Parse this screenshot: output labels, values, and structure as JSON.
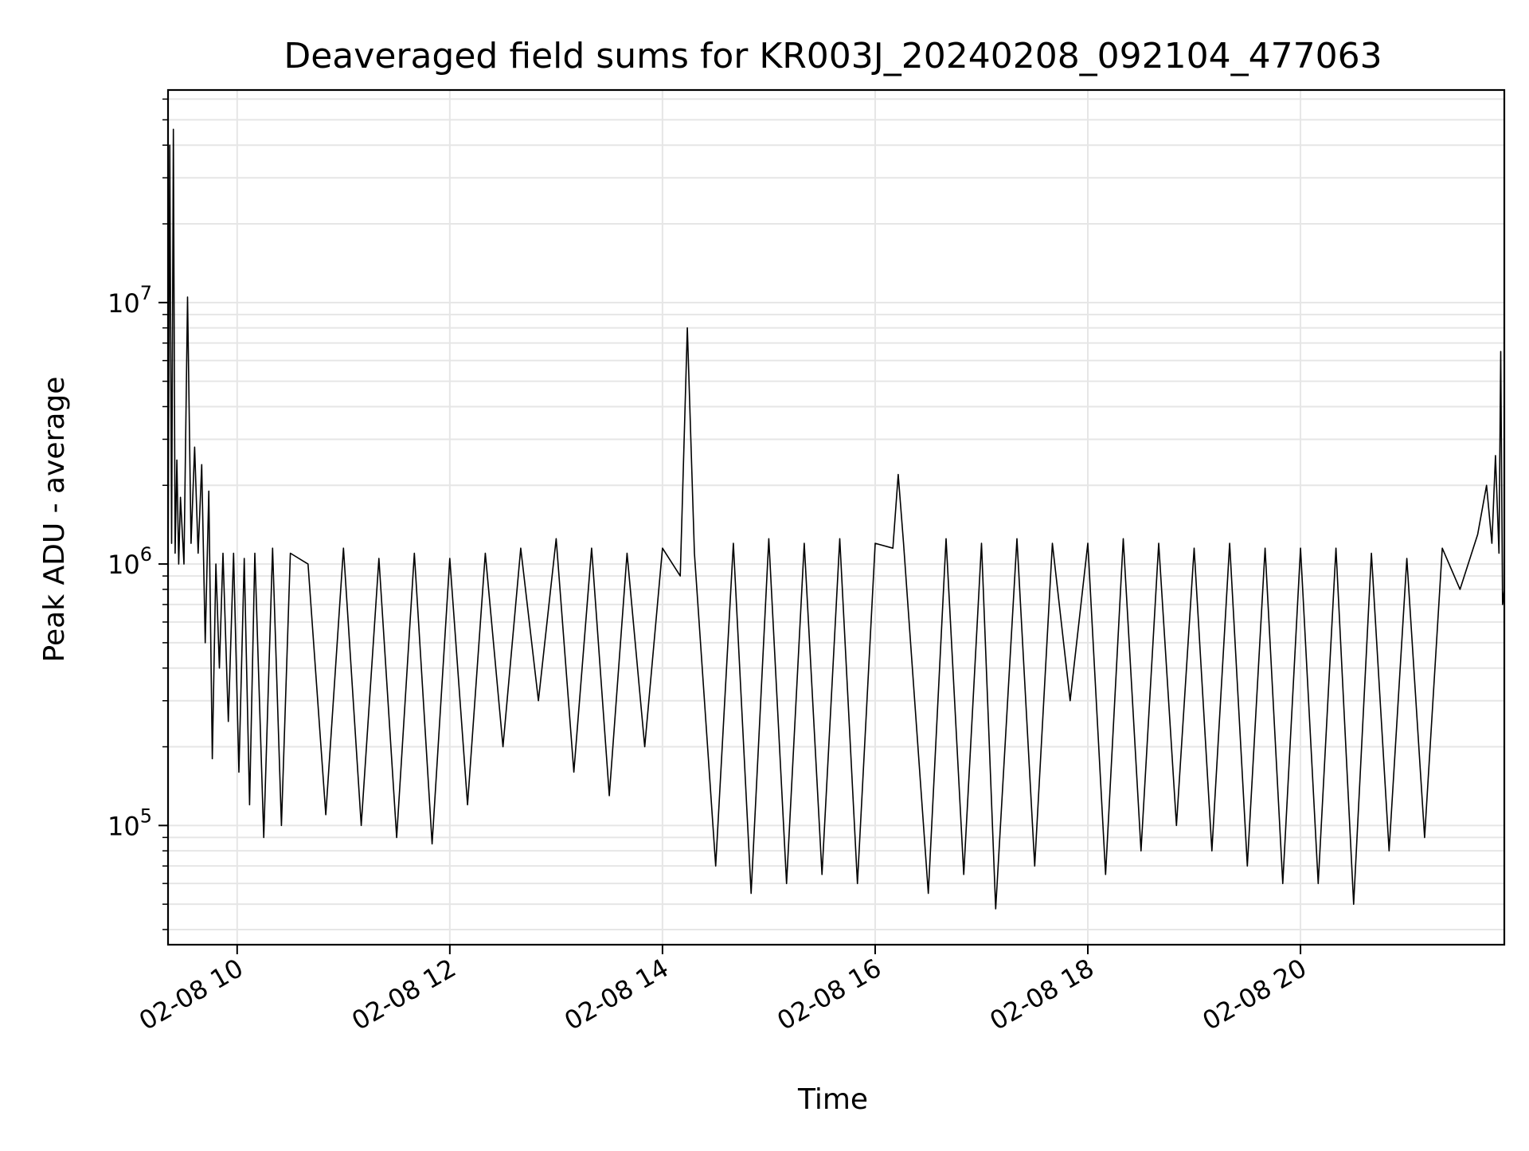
{
  "chart_data": {
    "type": "line",
    "title": "Deaveraged field sums for KR003J_20240208_092104_477063",
    "xlabel": "Time",
    "ylabel": "Peak ADU - average",
    "yscale": "log",
    "ylim": [
      35000,
      65000000
    ],
    "xlim": [
      "2024-02-08T09:21",
      "2024-02-08T21:55"
    ],
    "grid": true,
    "line_color": "#000000",
    "grid_color": "#e6e6e6",
    "x_ticks": [
      {
        "value": "2024-02-08T10:00",
        "label": "02-08 10"
      },
      {
        "value": "2024-02-08T12:00",
        "label": "02-08 12"
      },
      {
        "value": "2024-02-08T14:00",
        "label": "02-08 14"
      },
      {
        "value": "2024-02-08T16:00",
        "label": "02-08 16"
      },
      {
        "value": "2024-02-08T18:00",
        "label": "02-08 18"
      },
      {
        "value": "2024-02-08T20:00",
        "label": "02-08 20"
      }
    ],
    "y_ticks": [
      {
        "value": 100000,
        "base": "10",
        "exp": "5"
      },
      {
        "value": 1000000,
        "base": "10",
        "exp": "6"
      },
      {
        "value": 10000000,
        "base": "10",
        "exp": "7"
      }
    ],
    "series": [
      {
        "x": [
          "2024-02-08T09:21",
          "2024-02-08T09:22",
          "2024-02-08T09:23",
          "2024-02-08T09:24",
          "2024-02-08T09:25",
          "2024-02-08T09:26",
          "2024-02-08T09:27",
          "2024-02-08T09:28",
          "2024-02-08T09:30",
          "2024-02-08T09:32",
          "2024-02-08T09:34",
          "2024-02-08T09:36",
          "2024-02-08T09:38",
          "2024-02-08T09:40",
          "2024-02-08T09:42",
          "2024-02-08T09:44",
          "2024-02-08T09:46",
          "2024-02-08T09:48",
          "2024-02-08T09:50",
          "2024-02-08T09:52",
          "2024-02-08T09:55",
          "2024-02-08T09:58",
          "2024-02-08T10:01",
          "2024-02-08T10:04",
          "2024-02-08T10:07",
          "2024-02-08T10:10",
          "2024-02-08T10:15",
          "2024-02-08T10:20",
          "2024-02-08T10:25",
          "2024-02-08T10:30",
          "2024-02-08T10:40",
          "2024-02-08T10:50",
          "2024-02-08T11:00",
          "2024-02-08T11:10",
          "2024-02-08T11:20",
          "2024-02-08T11:30",
          "2024-02-08T11:40",
          "2024-02-08T11:50",
          "2024-02-08T12:00",
          "2024-02-08T12:10",
          "2024-02-08T12:20",
          "2024-02-08T12:30",
          "2024-02-08T12:40",
          "2024-02-08T12:50",
          "2024-02-08T13:00",
          "2024-02-08T13:10",
          "2024-02-08T13:20",
          "2024-02-08T13:30",
          "2024-02-08T13:40",
          "2024-02-08T13:50",
          "2024-02-08T14:00",
          "2024-02-08T14:10",
          "2024-02-08T14:14",
          "2024-02-08T14:18",
          "2024-02-08T14:30",
          "2024-02-08T14:40",
          "2024-02-08T14:50",
          "2024-02-08T15:00",
          "2024-02-08T15:10",
          "2024-02-08T15:20",
          "2024-02-08T15:30",
          "2024-02-08T15:40",
          "2024-02-08T15:50",
          "2024-02-08T16:00",
          "2024-02-08T16:10",
          "2024-02-08T16:13",
          "2024-02-08T16:16",
          "2024-02-08T16:30",
          "2024-02-08T16:40",
          "2024-02-08T16:50",
          "2024-02-08T17:00",
          "2024-02-08T17:08",
          "2024-02-08T17:20",
          "2024-02-08T17:30",
          "2024-02-08T17:40",
          "2024-02-08T17:50",
          "2024-02-08T18:00",
          "2024-02-08T18:10",
          "2024-02-08T18:20",
          "2024-02-08T18:30",
          "2024-02-08T18:40",
          "2024-02-08T18:50",
          "2024-02-08T19:00",
          "2024-02-08T19:10",
          "2024-02-08T19:20",
          "2024-02-08T19:30",
          "2024-02-08T19:40",
          "2024-02-08T19:50",
          "2024-02-08T20:00",
          "2024-02-08T20:10",
          "2024-02-08T20:20",
          "2024-02-08T20:30",
          "2024-02-08T20:40",
          "2024-02-08T20:50",
          "2024-02-08T21:00",
          "2024-02-08T21:10",
          "2024-02-08T21:20",
          "2024-02-08T21:30",
          "2024-02-08T21:40",
          "2024-02-08T21:45",
          "2024-02-08T21:48",
          "2024-02-08T21:50",
          "2024-02-08T21:52",
          "2024-02-08T21:53",
          "2024-02-08T21:54",
          "2024-02-08T21:55"
        ],
        "y": [
          900000,
          40000000,
          1200000,
          46000000,
          1100000,
          2500000,
          1000000,
          1800000,
          1000000,
          10500000,
          1200000,
          2800000,
          1100000,
          2400000,
          500000,
          1900000,
          180000,
          1000000,
          400000,
          1100000,
          250000,
          1100000,
          160000,
          1050000,
          120000,
          1100000,
          90000,
          1150000,
          100000,
          1100000,
          1000000,
          110000,
          1150000,
          100000,
          1050000,
          90000,
          1100000,
          85000,
          1050000,
          120000,
          1100000,
          200000,
          1150000,
          300000,
          1250000,
          160000,
          1150000,
          130000,
          1100000,
          200000,
          1150000,
          900000,
          8000000,
          1100000,
          70000,
          1200000,
          55000,
          1250000,
          60000,
          1200000,
          65000,
          1250000,
          60000,
          1200000,
          1150000,
          2200000,
          1200000,
          55000,
          1250000,
          65000,
          1200000,
          48000,
          1250000,
          70000,
          1200000,
          300000,
          1200000,
          65000,
          1250000,
          80000,
          1200000,
          100000,
          1150000,
          80000,
          1200000,
          70000,
          1150000,
          60000,
          1150000,
          60000,
          1150000,
          50000,
          1100000,
          80000,
          1050000,
          90000,
          1150000,
          800000,
          1300000,
          2000000,
          1200000,
          2600000,
          1100000,
          6500000,
          700000,
          800000
        ]
      }
    ]
  }
}
